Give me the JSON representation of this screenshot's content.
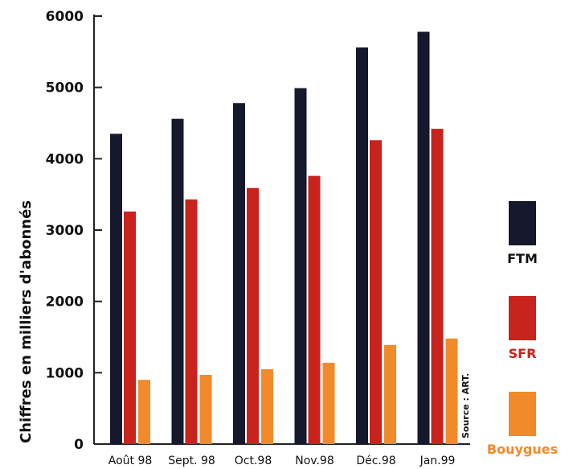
{
  "chart_data": {
    "type": "bar",
    "categories": [
      "Août 98",
      "Sept. 98",
      "Oct.98",
      "Nov.98",
      "Déc.98",
      "Jan.99"
    ],
    "series": [
      {
        "name": "FTM",
        "values": [
          4350,
          4560,
          4780,
          4990,
          5560,
          5780
        ],
        "color": "#16182e"
      },
      {
        "name": "SFR",
        "values": [
          3260,
          3430,
          3590,
          3760,
          4260,
          4420
        ],
        "color": "#c8231c"
      },
      {
        "name": "Bouygues",
        "values": [
          900,
          970,
          1050,
          1140,
          1390,
          1480
        ],
        "color": "#f08a2a"
      }
    ],
    "yticks": [
      "0",
      "1000",
      "2000",
      "3000",
      "4000",
      "5000",
      "6000"
    ],
    "ylim": [
      0,
      6000
    ],
    "ylabel": "Chiffres en milliers d'abonnés",
    "source": "Source : ART.",
    "legend_position": "right",
    "grid": false
  }
}
